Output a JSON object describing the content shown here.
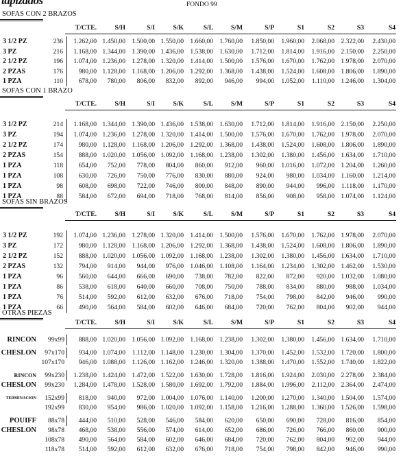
{
  "brand": "tapizados",
  "title": "FONDO 99",
  "columns": [
    "T/CTE.",
    "S/H",
    "S/I",
    "S/K",
    "S/L",
    "S/M",
    "S/P",
    "S1",
    "S2",
    "S3",
    "S4"
  ],
  "sections": [
    {
      "title": "SOFAS CON 2 BRAZOS",
      "rows": [
        {
          "label": "3 1/2 PZ",
          "qty": "236",
          "prices": [
            "1.262,00",
            "1.450,00",
            "1.500,00",
            "1.550,00",
            "1.660,00",
            "1.760,00",
            "1.850,00",
            "1.960,00",
            "2.068,00",
            "2.322,00",
            "2.430,00"
          ]
        },
        {
          "label": "3 PZ",
          "qty": "216",
          "prices": [
            "1.168,00",
            "1.344,00",
            "1.390,00",
            "1.436,00",
            "1.538,00",
            "1.630,00",
            "1.712,00",
            "1.814,00",
            "1.916,00",
            "2.150,00",
            "2.250,00"
          ]
        },
        {
          "label": "2 1/2 PZ",
          "qty": "196",
          "prices": [
            "1.074,00",
            "1.236,00",
            "1.278,00",
            "1.320,00",
            "1.414,00",
            "1.500,00",
            "1.576,00",
            "1.670,00",
            "1.762,00",
            "1.978,00",
            "2.070,00"
          ]
        },
        {
          "label": "2 PZAS",
          "qty": "176",
          "prices": [
            "980,00",
            "1.128,00",
            "1.168,00",
            "1.206,00",
            "1.292,00",
            "1.368,00",
            "1.438,00",
            "1.524,00",
            "1.608,00",
            "1.806,00",
            "1.890,00"
          ]
        },
        {
          "label": "1 PZA",
          "qty": "110",
          "prices": [
            "678,00",
            "780,00",
            "806,00",
            "832,00",
            "892,00",
            "946,00",
            "994,00",
            "1.052,00",
            "1.110,00",
            "1.246,00",
            "1.304,00"
          ]
        }
      ]
    },
    {
      "title": "SOFAS CON 1 BRAZO",
      "rows": [
        {
          "label": "3 1/2 PZ",
          "qty": "214",
          "prices": [
            "1.168,00",
            "1.344,00",
            "1.390,00",
            "1.436,00",
            "1.538,00",
            "1.630,00",
            "1.712,00",
            "1.814,00",
            "1.916,00",
            "2.150,00",
            "2.250,00"
          ]
        },
        {
          "label": "3 PZ",
          "qty": "194",
          "prices": [
            "1.074,00",
            "1.236,00",
            "1.278,00",
            "1.320,00",
            "1.414,00",
            "1.500,00",
            "1.576,00",
            "1.670,00",
            "1.762,00",
            "1.978,00",
            "2.070,00"
          ]
        },
        {
          "label": "2 1/2 PZ",
          "qty": "174",
          "prices": [
            "980,00",
            "1.128,00",
            "1.168,00",
            "1.206,00",
            "1.292,00",
            "1.368,00",
            "1.438,00",
            "1.524,00",
            "1.608,00",
            "1.806,00",
            "1.890,00"
          ]
        },
        {
          "label": "2 PZAS",
          "qty": "154",
          "prices": [
            "888,00",
            "1.020,00",
            "1.056,00",
            "1.092,00",
            "1.168,00",
            "1.238,00",
            "1.302,00",
            "1.380,00",
            "1.456,00",
            "1.634,00",
            "1.710,00"
          ]
        },
        {
          "label": "1 PZA",
          "qty": "118",
          "prices": [
            "654,00",
            "752,00",
            "778,00",
            "804,00",
            "860,00",
            "912,00",
            "960,00",
            "1.016,00",
            "1.072,00",
            "1.204,00",
            "1.260,00"
          ]
        },
        {
          "label": "1 PZA",
          "qty": "108",
          "prices": [
            "630,00",
            "726,00",
            "750,00",
            "776,00",
            "830,00",
            "880,00",
            "924,00",
            "980,00",
            "1.034,00",
            "1.160,00",
            "1.214,00"
          ]
        },
        {
          "label": "1 PZA",
          "qty": "98",
          "prices": [
            "608,00",
            "698,00",
            "722,00",
            "746,00",
            "800,00",
            "848,00",
            "890,00",
            "944,00",
            "996,00",
            "1.118,00",
            "1.170,00"
          ]
        },
        {
          "label": "1 PZA",
          "qty": "88",
          "prices": [
            "584,00",
            "672,00",
            "694,00",
            "718,00",
            "768,00",
            "814,00",
            "856,00",
            "908,00",
            "958,00",
            "1.074,00",
            "1.124,00"
          ]
        }
      ]
    },
    {
      "title": "SOFAS SIN BRAZOS",
      "rows": [
        {
          "label": "3 1/2 PZ",
          "qty": "192",
          "prices": [
            "1.074,00",
            "1.236,00",
            "1.278,00",
            "1.320,00",
            "1.414,00",
            "1.500,00",
            "1.576,00",
            "1.670,00",
            "1.762,00",
            "1.978,00",
            "2.070,00"
          ]
        },
        {
          "label": "3 PZ",
          "qty": "172",
          "prices": [
            "980,00",
            "1.128,00",
            "1.168,00",
            "1.206,00",
            "1.292,00",
            "1.368,00",
            "1.438,00",
            "1.524,00",
            "1.608,00",
            "1.806,00",
            "1.890,00"
          ]
        },
        {
          "label": "2 1/2 PZ",
          "qty": "152",
          "prices": [
            "888,00",
            "1.020,00",
            "1.056,00",
            "1.092,00",
            "1.168,00",
            "1.238,00",
            "1.302,00",
            "1.380,00",
            "1.456,00",
            "1.634,00",
            "1.710,00"
          ]
        },
        {
          "label": "2 PZAS",
          "qty": "132",
          "prices": [
            "794,00",
            "914,00",
            "944,00",
            "976,00",
            "1.046,00",
            "1.108,00",
            "1.164,00",
            "1.234,00",
            "1.302,00",
            "1.462,00",
            "1.530,00"
          ]
        },
        {
          "label": "1 PZA",
          "qty": "96",
          "prices": [
            "560,00",
            "644,00",
            "666,00",
            "690,00",
            "738,00",
            "782,00",
            "822,00",
            "872,00",
            "920,00",
            "1.032,00",
            "1.080,00"
          ]
        },
        {
          "label": "1 PZA",
          "qty": "86",
          "prices": [
            "538,00",
            "618,00",
            "640,00",
            "660,00",
            "708,00",
            "750,00",
            "788,00",
            "834,00",
            "880,00",
            "988,00",
            "1.034,00"
          ]
        },
        {
          "label": "1 PZA",
          "qty": "76",
          "prices": [
            "514,00",
            "592,00",
            "612,00",
            "632,00",
            "676,00",
            "718,00",
            "754,00",
            "798,00",
            "842,00",
            "946,00",
            "990,00"
          ]
        },
        {
          "label": "1 PZA",
          "qty": "66",
          "prices": [
            "490,00",
            "564,00",
            "584,00",
            "602,00",
            "646,00",
            "684,00",
            "720,00",
            "762,00",
            "804,00",
            "902,00",
            "944,00"
          ]
        }
      ]
    }
  ],
  "otras": {
    "title": "OTRAS PIEZAS",
    "groups": [
      [
        {
          "label": "RINCON",
          "dim": "99x99",
          "prices": [
            "888,00",
            "1.020,00",
            "1.056,00",
            "1.092,00",
            "1.168,00",
            "1.238,00",
            "1.302,00",
            "1.380,00",
            "1.456,00",
            "1.634,00",
            "1.710,00"
          ]
        }
      ],
      [
        {
          "label": "CHESLON",
          "dim": "97x170",
          "prices": [
            "934,00",
            "1.074,00",
            "1.112,00",
            "1.148,00",
            "1.230,00",
            "1.304,00",
            "1.370,00",
            "1.452,00",
            "1.532,00",
            "1.720,00",
            "1.800,00"
          ]
        },
        {
          "label": "",
          "dim": "107x170",
          "prices": [
            "946,00",
            "1.088,00",
            "1.126,00",
            "1.162,00",
            "1.246,00",
            "1.320,00",
            "1.388,00",
            "1.470,00",
            "1.552,00",
            "1.740,00",
            "1.822,00"
          ]
        }
      ],
      [
        {
          "label": "RINCON",
          "small": true,
          "dim": "99x230",
          "prices": [
            "1.238,00",
            "1.424,00",
            "1.472,00",
            "1.522,00",
            "1.630,00",
            "1.728,00",
            "1.816,00",
            "1.924,00",
            "2.030,00",
            "2.278,00",
            "2.384,00"
          ]
        },
        {
          "label": "CHESLON",
          "dim": "99x230",
          "prices": [
            "1.284,00",
            "1.478,00",
            "1.528,00",
            "1.580,00",
            "1.692,00",
            "1.792,00",
            "1.884,00",
            "1.996,00",
            "2.112,00",
            "2.364,00",
            "2.474,00"
          ]
        }
      ],
      [
        {
          "label": "TERMINACION",
          "tiny": true,
          "dim": "152x99",
          "prices": [
            "818,00",
            "940,00",
            "972,00",
            "1.004,00",
            "1.076,00",
            "1.140,00",
            "1.200,00",
            "1.270,00",
            "1.340,00",
            "1.504,00",
            "1.574,00"
          ]
        },
        {
          "label": "",
          "dim": "192x99",
          "prices": [
            "830,00",
            "954,00",
            "986,00",
            "1.020,00",
            "1.092,00",
            "1.158,00",
            "1.216,00",
            "1.288,00",
            "1.360,00",
            "1.526,00",
            "1.598,00"
          ]
        }
      ],
      [
        {
          "label": "POUIFF",
          "dim": "88x78",
          "prices": [
            "444,00",
            "510,00",
            "528,00",
            "546,00",
            "584,00",
            "620,00",
            "650,00",
            "690,00",
            "728,00",
            "816,00",
            "854,00"
          ]
        },
        {
          "label": "CHESLON",
          "dim": "98x78",
          "prices": [
            "468,00",
            "538,00",
            "556,00",
            "574,00",
            "614,00",
            "652,00",
            "686,00",
            "726,00",
            "766,00",
            "860,00",
            "900,00"
          ]
        },
        {
          "label": "",
          "dim": "108x78",
          "prices": [
            "490,00",
            "564,00",
            "584,00",
            "602,00",
            "646,00",
            "684,00",
            "720,00",
            "762,00",
            "804,00",
            "902,00",
            "944,00"
          ]
        },
        {
          "label": "",
          "dim": "118x78",
          "prices": [
            "514,00",
            "592,00",
            "612,00",
            "632,00",
            "676,00",
            "718,00",
            "754,00",
            "798,00",
            "842,00",
            "946,00",
            "990,00"
          ]
        }
      ]
    ]
  }
}
